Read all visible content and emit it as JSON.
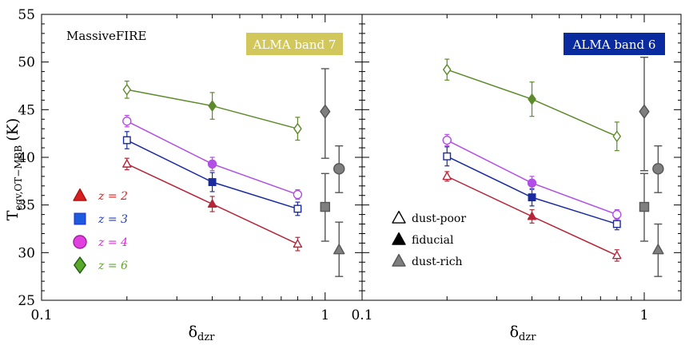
{
  "chart_data": [
    {
      "type": "scatter",
      "title": "",
      "annotation": "MassiveFIRE",
      "badge": {
        "label": "ALMA band 7",
        "color": "#d2c75a"
      },
      "xlabel": "δ",
      "xlabel_sub": "dzr",
      "ylabel": "T",
      "ylabel_sub": "eqv,OT−MBB",
      "ylabel_unit": "(K)",
      "xscale": "log",
      "xlim": [
        0.1,
        1.35
      ],
      "ylim": [
        25,
        55
      ],
      "xticks": [
        {
          "v": 0.1,
          "label": "0.1"
        },
        {
          "v": 1,
          "label": "1"
        }
      ],
      "yticks": [
        25,
        30,
        35,
        40,
        45,
        50,
        55
      ],
      "series": [
        {
          "name": "z = 2",
          "color": "#b5263a",
          "marker": "triangle",
          "x": [
            0.2,
            0.4,
            0.8
          ],
          "y": [
            39.3,
            35.1,
            30.9
          ],
          "err": [
            0.6,
            0.8,
            0.7
          ],
          "filled": [
            false,
            true,
            false
          ]
        },
        {
          "name": "z = 3",
          "color": "#1a2aa0",
          "marker": "square",
          "x": [
            0.2,
            0.4,
            0.8
          ],
          "y": [
            41.8,
            37.4,
            34.6
          ],
          "err": [
            0.9,
            1.0,
            0.7
          ],
          "filled": [
            false,
            true,
            false
          ]
        },
        {
          "name": "z = 4",
          "color": "#b04ee6",
          "marker": "circle",
          "x": [
            0.2,
            0.4,
            0.8
          ],
          "y": [
            43.8,
            39.3,
            36.1
          ],
          "err": [
            0.6,
            0.7,
            0.5
          ],
          "filled": [
            false,
            true,
            false
          ]
        },
        {
          "name": "z = 6",
          "color": "#5d8a2a",
          "marker": "diamond",
          "x": [
            0.2,
            0.4,
            0.8
          ],
          "y": [
            47.1,
            45.4,
            43.0
          ],
          "err": [
            0.9,
            1.4,
            1.2
          ],
          "filled": [
            false,
            true,
            false
          ]
        }
      ],
      "gray_points": [
        {
          "marker": "diamond",
          "x": 1.0,
          "y": 44.8,
          "err_low": 39.9,
          "err_high": 49.3
        },
        {
          "marker": "circle",
          "x": 1.12,
          "y": 38.8,
          "err_low": 36.3,
          "err_high": 41.2
        },
        {
          "marker": "square",
          "x": 1.0,
          "y": 34.8,
          "err_low": 31.2,
          "err_high": 38.3
        },
        {
          "marker": "triangle",
          "x": 1.12,
          "y": 30.3,
          "err_low": 27.5,
          "err_high": 33.2
        }
      ],
      "legend_redshift": [
        "z = 2",
        "z = 3",
        "z = 4",
        "z = 6"
      ],
      "legend_colors": [
        "#d81e1e",
        "#1e5ae0",
        "#e040e0",
        "#5aa82a"
      ],
      "legend_text_colors": [
        "#d81e1e",
        "#1e3ad0",
        "#d030d0",
        "#5aa82a"
      ]
    },
    {
      "type": "scatter",
      "title": "",
      "badge": {
        "label": "ALMA band 6",
        "color": "#0a2aa0"
      },
      "xlabel": "δ",
      "xlabel_sub": "dzr",
      "xscale": "log",
      "xlim": [
        0.1,
        1.35
      ],
      "ylim": [
        25,
        55
      ],
      "xticks": [
        {
          "v": 0.1,
          "label": "0.1"
        },
        {
          "v": 1,
          "label": "1"
        }
      ],
      "yticks": [
        25,
        30,
        35,
        40,
        45,
        50,
        55
      ],
      "series": [
        {
          "name": "z = 2",
          "color": "#b5263a",
          "marker": "triangle",
          "x": [
            0.2,
            0.4,
            0.8
          ],
          "y": [
            38.0,
            33.8,
            29.7
          ],
          "err": [
            0.5,
            0.7,
            0.6
          ],
          "filled": [
            false,
            true,
            false
          ]
        },
        {
          "name": "z = 3",
          "color": "#1a2aa0",
          "marker": "square",
          "x": [
            0.2,
            0.4,
            0.8
          ],
          "y": [
            40.1,
            35.8,
            33.0
          ],
          "err": [
            1.0,
            0.9,
            0.6
          ],
          "filled": [
            false,
            true,
            false
          ]
        },
        {
          "name": "z = 4",
          "color": "#b04ee6",
          "marker": "circle",
          "x": [
            0.2,
            0.4,
            0.8
          ],
          "y": [
            41.8,
            37.3,
            34.0
          ],
          "err": [
            0.6,
            0.7,
            0.5
          ],
          "filled": [
            false,
            true,
            false
          ]
        },
        {
          "name": "z = 6",
          "color": "#5d8a2a",
          "marker": "diamond",
          "x": [
            0.2,
            0.4,
            0.8
          ],
          "y": [
            49.2,
            46.1,
            42.2
          ],
          "err": [
            1.1,
            1.8,
            1.5
          ],
          "filled": [
            false,
            true,
            false
          ]
        }
      ],
      "gray_points": [
        {
          "marker": "diamond",
          "x": 1.0,
          "y": 44.8,
          "err_low": 38.6,
          "err_high": 50.5
        },
        {
          "marker": "circle",
          "x": 1.12,
          "y": 38.8,
          "err_low": 36.3,
          "err_high": 41.2
        },
        {
          "marker": "square",
          "x": 1.0,
          "y": 34.8,
          "err_low": 31.2,
          "err_high": 38.3
        },
        {
          "marker": "triangle",
          "x": 1.12,
          "y": 30.3,
          "err_low": 27.5,
          "err_high": 33.0
        }
      ],
      "legend_variant": [
        "dust-poor",
        "fiducial",
        "dust-rich"
      ]
    }
  ]
}
